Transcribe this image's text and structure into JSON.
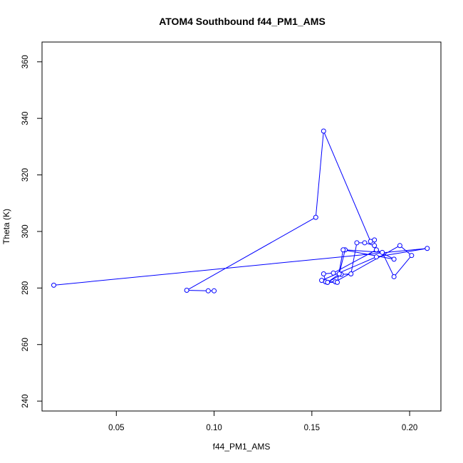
{
  "chart_data": {
    "type": "line",
    "title": "ATOM4 Southbound f44_PM1_AMS",
    "xlabel": "f44_PM1_AMS",
    "ylabel": "Theta (K)",
    "xlim": [
      0.012,
      0.216
    ],
    "ylim": [
      236.5,
      367
    ],
    "x_ticks": [
      0.05,
      0.1,
      0.15,
      0.2
    ],
    "x_tick_labels": [
      "0.05",
      "0.10",
      "0.15",
      "0.20"
    ],
    "y_ticks": [
      240,
      260,
      280,
      300,
      320,
      340,
      360
    ],
    "y_tick_labels": [
      "240",
      "260",
      "280",
      "300",
      "320",
      "340",
      "360"
    ],
    "grid": false,
    "line_color": "#0000ff",
    "marker": "open-circle",
    "series": [
      {
        "x": [
          0.1,
          0.097,
          0.086,
          0.152,
          0.156,
          0.18,
          0.182,
          0.182,
          0.177,
          0.173,
          0.17,
          0.165,
          0.158,
          0.164,
          0.167,
          0.186,
          0.192,
          0.201,
          0.195,
          0.162,
          0.157,
          0.156,
          0.161,
          0.183,
          0.192,
          0.166,
          0.163,
          0.158,
          0.155,
          0.183,
          0.209,
          0.018
        ],
        "y": [
          279.0,
          279.0,
          279.2,
          305.0,
          335.5,
          296.5,
          297.0,
          295.0,
          296.0,
          296.0,
          285.0,
          284.8,
          282.0,
          285.0,
          293.5,
          292.6,
          284.0,
          291.5,
          295.0,
          282.2,
          282.2,
          285.0,
          285.3,
          293.5,
          290.2,
          293.5,
          282.0,
          282.0,
          282.7,
          291.0,
          294.0,
          281.0
        ]
      }
    ]
  }
}
